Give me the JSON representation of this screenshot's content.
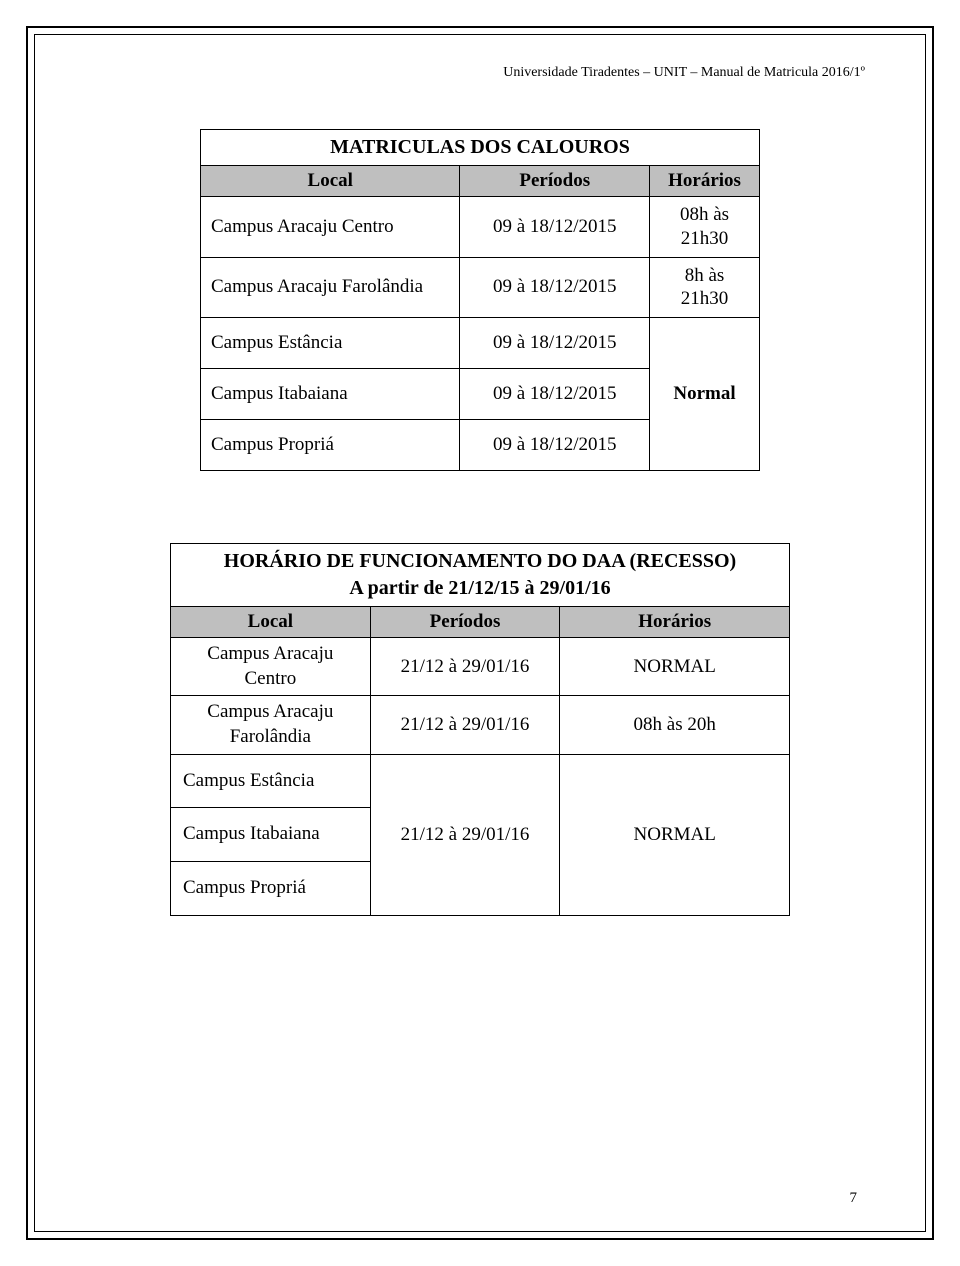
{
  "header": "Universidade Tiradentes – UNIT – Manual de Matricula 2016/1º",
  "page_number": "7",
  "colors": {
    "header_bg": "#bfbfbf",
    "border": "#000000",
    "background": "#ffffff",
    "text": "#000000"
  },
  "table1": {
    "title": "MATRICULAS DOS CALOUROS",
    "columns": [
      "Local",
      "Períodos",
      "Horários"
    ],
    "rows": [
      {
        "local": "Campus Aracaju Centro",
        "periodo": "09 à 18/12/2015",
        "horario": "08h às 21h30"
      },
      {
        "local": "Campus Aracaju Farolândia",
        "periodo": "09 à 18/12/2015",
        "horario": "8h às 21h30"
      },
      {
        "local": "Campus Estância",
        "periodo": "09 à 18/12/2015",
        "horario": ""
      },
      {
        "local": "Campus Itabaiana",
        "periodo": "09 à 18/12/2015",
        "horario": "Normal"
      },
      {
        "local": "Campus Propriá",
        "periodo": "09 à 18/12/2015",
        "horario": ""
      }
    ],
    "merged_horario_label": "Normal"
  },
  "table2": {
    "title_line1": "HORÁRIO DE FUNCIONAMENTO DO DAA (RECESSO)",
    "title_line2": "A partir de 21/12/15 à 29/01/16",
    "columns": [
      "Local",
      "Períodos",
      "Horários"
    ],
    "rows": [
      {
        "local_l1": "Campus Aracaju",
        "local_l2": "Centro",
        "periodo": "21/12 à 29/01/16",
        "horario": "NORMAL"
      },
      {
        "local_l1": "Campus Aracaju",
        "local_l2": "Farolândia",
        "periodo": "21/12 à 29/01/16",
        "horario": "08h às 20h"
      },
      {
        "local": "Campus Estância",
        "periodo": "",
        "horario": ""
      },
      {
        "local": "Campus Itabaiana",
        "periodo": "21/12 à 29/01/16",
        "horario": "NORMAL"
      },
      {
        "local": "Campus Propriá",
        "periodo": "",
        "horario": ""
      }
    ],
    "merged_periodo": "21/12 à 29/01/16",
    "merged_horario": "NORMAL"
  }
}
